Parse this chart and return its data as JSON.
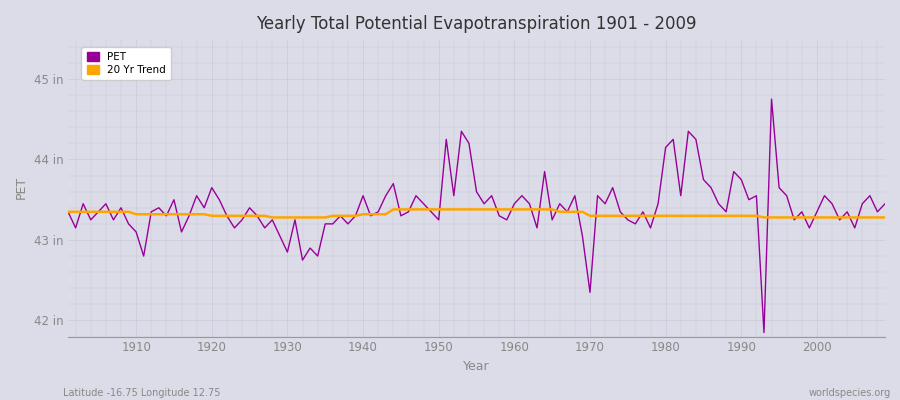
{
  "title": "Yearly Total Potential Evapotranspiration 1901 - 2009",
  "xlabel": "Year",
  "ylabel": "PET",
  "xlim": [
    1901,
    2009
  ],
  "ylim": [
    41.8,
    45.5
  ],
  "yticks": [
    42,
    43,
    44,
    45
  ],
  "ytick_labels": [
    "42 in",
    "43 in",
    "44 in",
    "45 in"
  ],
  "xticks": [
    1910,
    1920,
    1930,
    1940,
    1950,
    1960,
    1970,
    1980,
    1990,
    2000
  ],
  "pet_color": "#990099",
  "trend_color": "#FFA500",
  "bg_color": "#DCDCE8",
  "grid_color": "#C8C8D8",
  "pet_linewidth": 1.0,
  "trend_linewidth": 1.8,
  "subtitle_left": "Latitude -16.75 Longitude 12.75",
  "subtitle_right": "worldspecies.org",
  "years": [
    1901,
    1902,
    1903,
    1904,
    1905,
    1906,
    1907,
    1908,
    1909,
    1910,
    1911,
    1912,
    1913,
    1914,
    1915,
    1916,
    1917,
    1918,
    1919,
    1920,
    1921,
    1922,
    1923,
    1924,
    1925,
    1926,
    1927,
    1928,
    1929,
    1930,
    1931,
    1932,
    1933,
    1934,
    1935,
    1936,
    1937,
    1938,
    1939,
    1940,
    1941,
    1942,
    1943,
    1944,
    1945,
    1946,
    1947,
    1948,
    1949,
    1950,
    1951,
    1952,
    1953,
    1954,
    1955,
    1956,
    1957,
    1958,
    1959,
    1960,
    1961,
    1962,
    1963,
    1964,
    1965,
    1966,
    1967,
    1968,
    1969,
    1970,
    1971,
    1972,
    1973,
    1974,
    1975,
    1976,
    1977,
    1978,
    1979,
    1980,
    1981,
    1982,
    1983,
    1984,
    1985,
    1986,
    1987,
    1988,
    1989,
    1990,
    1991,
    1992,
    1993,
    1994,
    1995,
    1996,
    1997,
    1998,
    1999,
    2000,
    2001,
    2002,
    2003,
    2004,
    2005,
    2006,
    2007,
    2008,
    2009
  ],
  "pet_values": [
    43.35,
    43.15,
    43.45,
    43.25,
    43.35,
    43.45,
    43.25,
    43.4,
    43.2,
    43.1,
    42.8,
    43.35,
    43.4,
    43.3,
    43.5,
    43.1,
    43.3,
    43.55,
    43.4,
    43.65,
    43.5,
    43.3,
    43.15,
    43.25,
    43.4,
    43.3,
    43.15,
    43.25,
    43.05,
    42.85,
    43.25,
    42.75,
    42.9,
    42.8,
    43.2,
    43.2,
    43.3,
    43.2,
    43.3,
    43.55,
    43.3,
    43.35,
    43.55,
    43.7,
    43.3,
    43.35,
    43.55,
    43.45,
    43.35,
    43.25,
    44.25,
    43.55,
    44.35,
    44.2,
    43.6,
    43.45,
    43.55,
    43.3,
    43.25,
    43.45,
    43.55,
    43.45,
    43.15,
    43.85,
    43.25,
    43.45,
    43.35,
    43.55,
    43.05,
    42.35,
    43.55,
    43.45,
    43.65,
    43.35,
    43.25,
    43.2,
    43.35,
    43.15,
    43.45,
    44.15,
    44.25,
    43.55,
    44.35,
    44.25,
    43.75,
    43.65,
    43.45,
    43.35,
    43.85,
    43.75,
    43.5,
    43.55,
    41.85,
    44.75,
    43.65,
    43.55,
    43.25,
    43.35,
    43.15,
    43.35,
    43.55,
    43.45,
    43.25,
    43.35,
    43.15,
    43.45,
    43.55,
    43.35,
    43.45
  ],
  "trend_values": [
    43.35,
    43.35,
    43.35,
    43.35,
    43.35,
    43.35,
    43.35,
    43.35,
    43.35,
    43.32,
    43.32,
    43.32,
    43.32,
    43.32,
    43.32,
    43.32,
    43.32,
    43.32,
    43.32,
    43.3,
    43.3,
    43.3,
    43.3,
    43.3,
    43.3,
    43.3,
    43.3,
    43.28,
    43.28,
    43.28,
    43.28,
    43.28,
    43.28,
    43.28,
    43.28,
    43.3,
    43.3,
    43.3,
    43.3,
    43.32,
    43.32,
    43.32,
    43.32,
    43.38,
    43.38,
    43.38,
    43.38,
    43.38,
    43.38,
    43.38,
    43.38,
    43.38,
    43.38,
    43.38,
    43.38,
    43.38,
    43.38,
    43.38,
    43.38,
    43.38,
    43.38,
    43.38,
    43.38,
    43.38,
    43.38,
    43.35,
    43.35,
    43.35,
    43.35,
    43.3,
    43.3,
    43.3,
    43.3,
    43.3,
    43.3,
    43.3,
    43.3,
    43.3,
    43.3,
    43.3,
    43.3,
    43.3,
    43.3,
    43.3,
    43.3,
    43.3,
    43.3,
    43.3,
    43.3,
    43.3,
    43.3,
    43.3,
    43.28,
    43.28,
    43.28,
    43.28,
    43.28,
    43.28,
    43.28,
    43.28,
    43.28,
    43.28,
    43.28,
    43.28,
    43.28,
    43.28,
    43.28,
    43.28,
    43.28
  ]
}
